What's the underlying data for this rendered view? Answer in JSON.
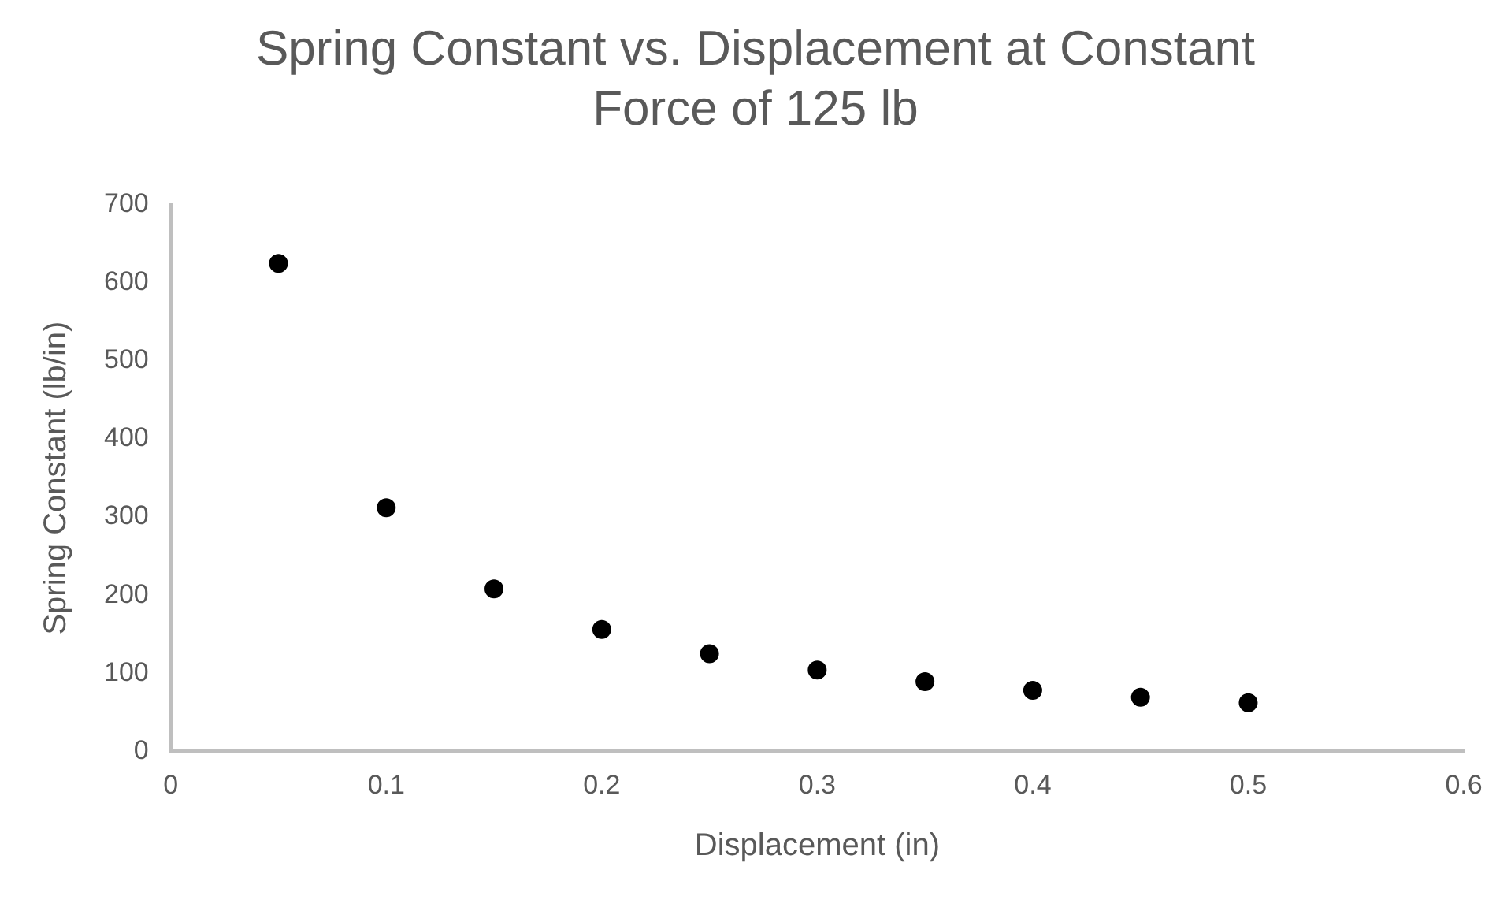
{
  "chart_data": {
    "type": "scatter",
    "title": "Spring Constant vs. Displacement at Constant Force of 125 lb",
    "xlabel": "Displacement (in)",
    "ylabel": "Spring Constant (lb/in)",
    "x": [
      0.05,
      0.1,
      0.15,
      0.2,
      0.25,
      0.3,
      0.35,
      0.4,
      0.45,
      0.5
    ],
    "series": [
      {
        "color": "#000000",
        "values": [
          625,
          312,
          208,
          156,
          125,
          104,
          89,
          78,
          69,
          62
        ]
      }
    ],
    "xlim": [
      0,
      0.6
    ],
    "xticks": [
      0,
      0.1,
      0.2,
      0.3,
      0.4,
      0.5,
      0.6
    ],
    "ylim": [
      0,
      700
    ],
    "yticks": [
      0,
      100,
      200,
      300,
      400,
      500,
      600,
      700
    ],
    "grid": false,
    "legend": false,
    "marker": "circle"
  }
}
